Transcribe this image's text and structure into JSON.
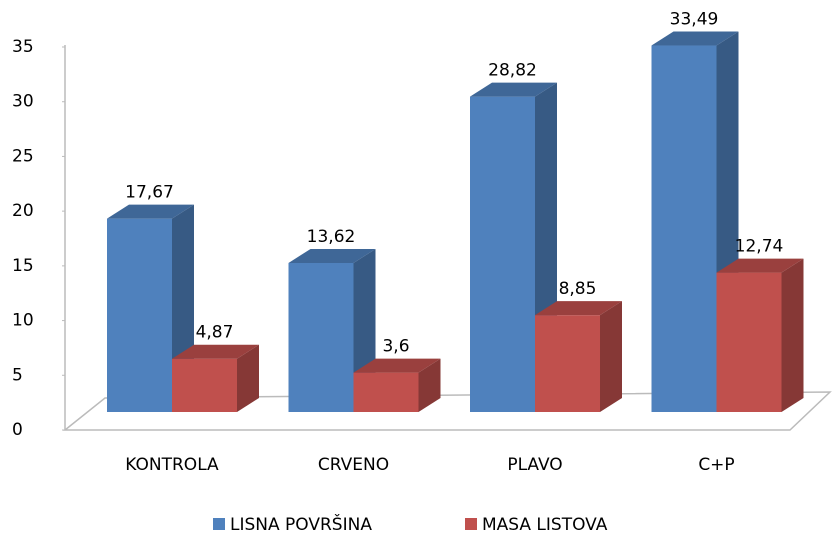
{
  "chart_data": {
    "type": "bar3d",
    "categories": [
      "KONTROLA",
      "CRVENO",
      "PLAVO",
      "C+P"
    ],
    "series": [
      {
        "name": "LISNA POVRŠINA",
        "color": "#4f81bd",
        "values": [
          17.67,
          13.62,
          28.82,
          33.49
        ],
        "value_labels": [
          "17,67",
          "13,62",
          "28,82",
          "33,49"
        ]
      },
      {
        "name": "MASA LISTOVA",
        "color": "#c0504d",
        "values": [
          4.87,
          3.6,
          8.85,
          12.74
        ],
        "value_labels": [
          "4,87",
          "3,6",
          "8,85",
          "12,74"
        ]
      }
    ],
    "ylim": [
      0,
      35
    ],
    "yticks": [
      0,
      5,
      10,
      15,
      20,
      25,
      30,
      35
    ],
    "legend": "bottom"
  }
}
